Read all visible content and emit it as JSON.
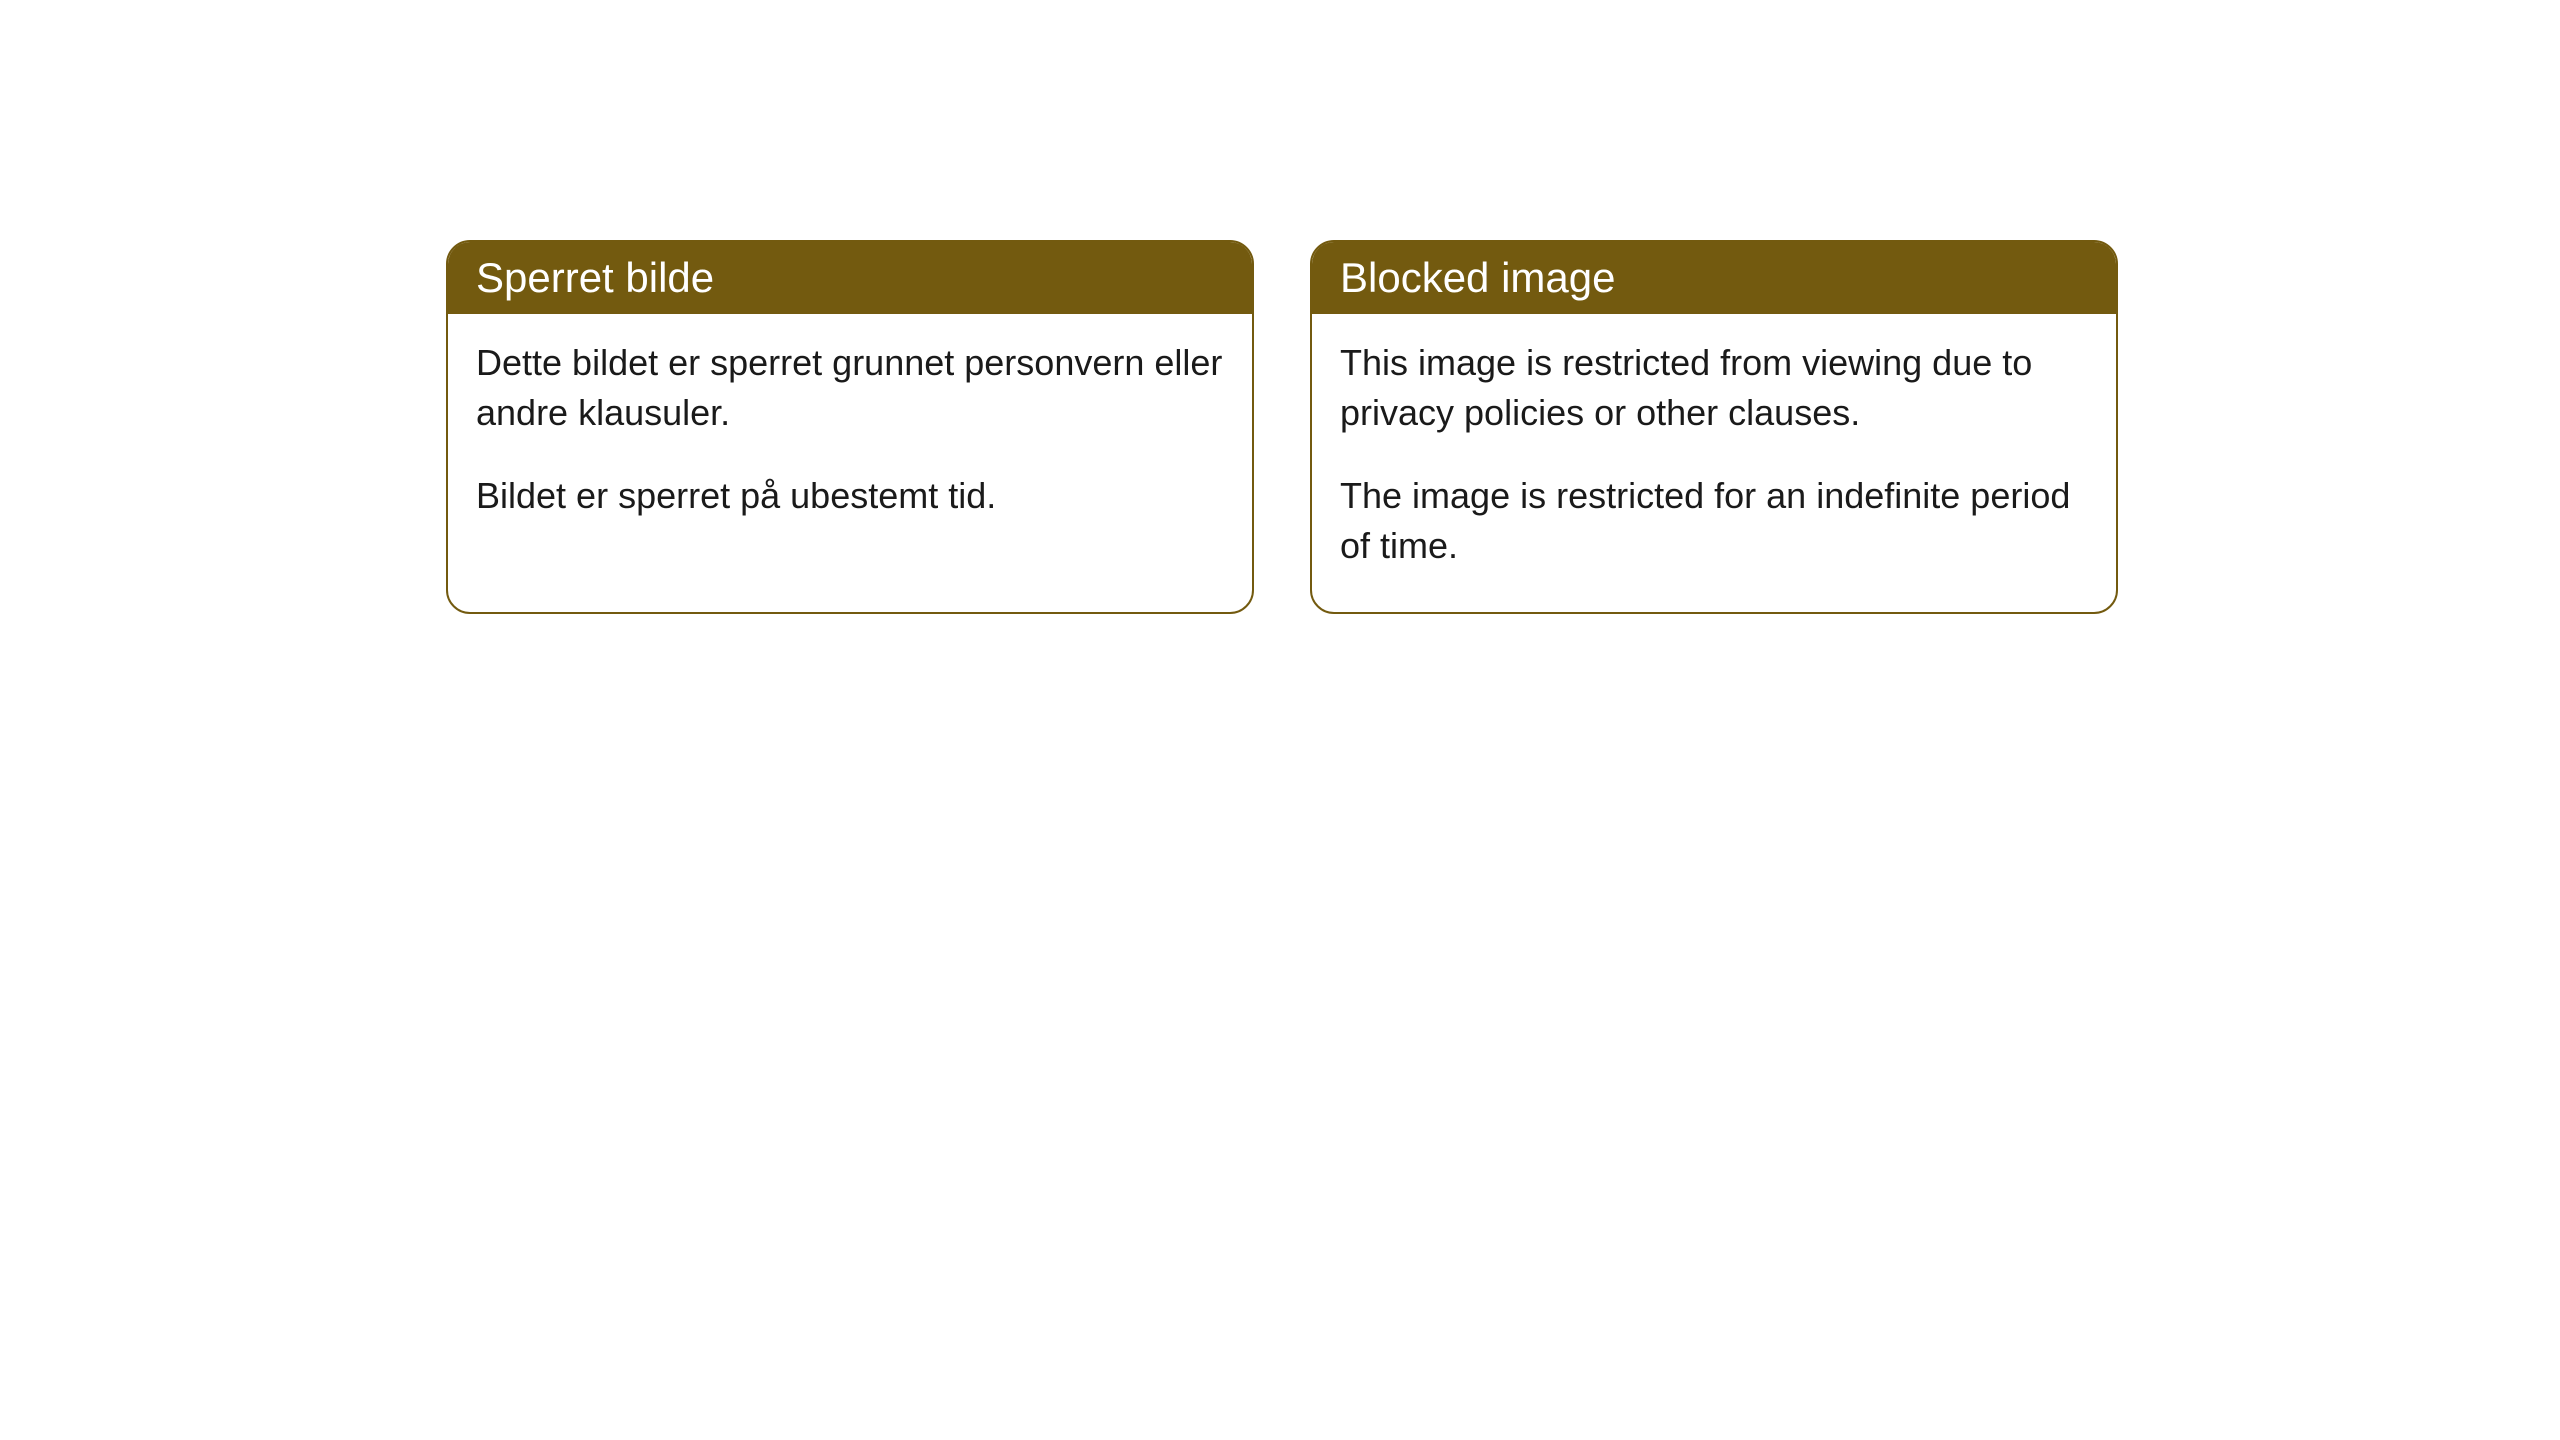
{
  "cards": [
    {
      "title": "Sperret bilde",
      "paragraph1": "Dette bildet er sperret grunnet personvern eller andre klausuler.",
      "paragraph2": "Bildet er sperret på ubestemt tid."
    },
    {
      "title": "Blocked image",
      "paragraph1": "This image is restricted from viewing due to privacy policies or other clauses.",
      "paragraph2": "The image is restricted for an indefinite period of time."
    }
  ],
  "styles": {
    "header_background": "#735a0f",
    "header_text_color": "#ffffff",
    "border_color": "#735a0f",
    "body_background": "#ffffff",
    "body_text_color": "#1a1a1a",
    "border_radius": 24,
    "title_fontsize": 42,
    "body_fontsize": 36
  }
}
